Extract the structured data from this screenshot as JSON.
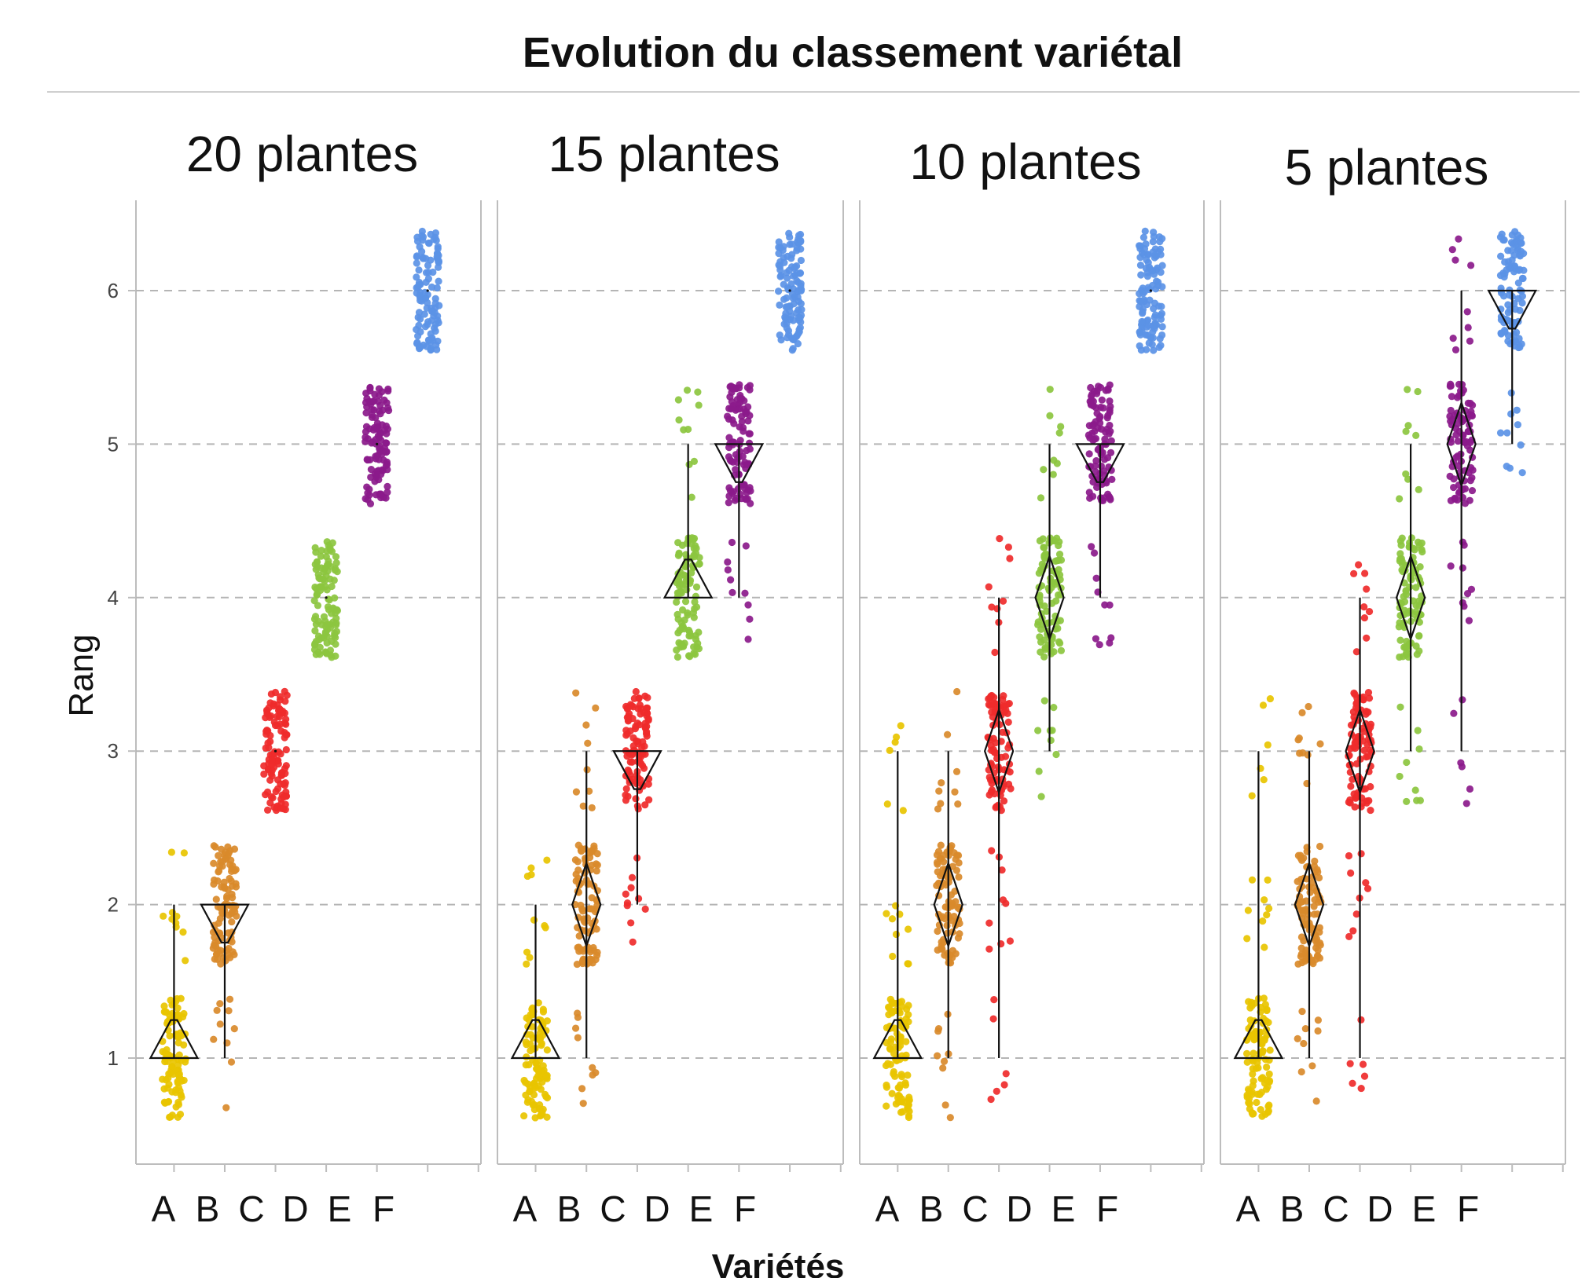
{
  "chart_data": {
    "type": "scatter",
    "title": "Evolution du classement variétal",
    "xlabel": "Variétés",
    "ylabel": "Rang",
    "ylim": [
      0.55,
      6.6
    ],
    "yticks": [
      1,
      2,
      3,
      4,
      5,
      6
    ],
    "grid": true,
    "colors": {
      "A": "#e8c400",
      "B": "#d98a2b",
      "C": "#ef2b2b",
      "D": "#8cc63f",
      "E": "#8b1a8b",
      "F": "#5b93e6"
    },
    "panels": [
      {
        "title": "20 plantes",
        "categories": [
          "A",
          "B",
          "C",
          "D",
          "E",
          "F"
        ],
        "series": [
          {
            "category": "A",
            "range": [
              1,
              2
            ],
            "min": 1,
            "max": 2,
            "mode": 1
          },
          {
            "category": "B",
            "range": [
              1,
              2
            ],
            "min": 1,
            "max": 2,
            "mode": 2
          },
          {
            "category": "C",
            "range": [
              3,
              3
            ],
            "min": 3,
            "max": 3,
            "mode": 3
          },
          {
            "category": "D",
            "range": [
              4,
              4
            ],
            "min": 4,
            "max": 4,
            "mode": 4
          },
          {
            "category": "E",
            "range": [
              5,
              5
            ],
            "min": 5,
            "max": 5,
            "mode": 5
          },
          {
            "category": "F",
            "range": [
              6,
              6
            ],
            "min": 6,
            "max": 6,
            "mode": 6
          }
        ]
      },
      {
        "title": "15 plantes",
        "categories": [
          "A",
          "B",
          "C",
          "D",
          "E",
          "F"
        ],
        "series": [
          {
            "category": "A",
            "range": [
              1,
              2
            ],
            "min": 1,
            "max": 2,
            "mode": 1
          },
          {
            "category": "B",
            "range": [
              1,
              3
            ],
            "min": 1,
            "max": 3,
            "mode": 2
          },
          {
            "category": "C",
            "range": [
              2,
              3
            ],
            "min": 2,
            "max": 3,
            "mode": 3
          },
          {
            "category": "D",
            "range": [
              4,
              5
            ],
            "min": 4,
            "max": 5,
            "mode": 4
          },
          {
            "category": "E",
            "range": [
              4,
              5
            ],
            "min": 4,
            "max": 5,
            "mode": 5
          },
          {
            "category": "F",
            "range": [
              6,
              6
            ],
            "min": 6,
            "max": 6,
            "mode": 6
          }
        ]
      },
      {
        "title": "10 plantes",
        "categories": [
          "A",
          "B",
          "C",
          "D",
          "E",
          "F"
        ],
        "series": [
          {
            "category": "A",
            "range": [
              1,
              3
            ],
            "min": 1,
            "max": 3,
            "mode": 1
          },
          {
            "category": "B",
            "range": [
              1,
              3
            ],
            "min": 1,
            "max": 3,
            "mode": 2
          },
          {
            "category": "C",
            "range": [
              1,
              4
            ],
            "min": 1,
            "max": 4,
            "mode": 3
          },
          {
            "category": "D",
            "range": [
              3,
              5
            ],
            "min": 3,
            "max": 5,
            "mode": 4
          },
          {
            "category": "E",
            "range": [
              4,
              5
            ],
            "min": 4,
            "max": 5,
            "mode": 5
          },
          {
            "category": "F",
            "range": [
              6,
              6
            ],
            "min": 6,
            "max": 6,
            "mode": 6
          }
        ]
      },
      {
        "title": "5 plantes",
        "categories": [
          "A",
          "B",
          "C",
          "D",
          "E",
          "F"
        ],
        "series": [
          {
            "category": "A",
            "range": [
              1,
              3
            ],
            "min": 1,
            "max": 3,
            "mode": 1
          },
          {
            "category": "B",
            "range": [
              1,
              3
            ],
            "min": 1,
            "max": 3,
            "mode": 2
          },
          {
            "category": "C",
            "range": [
              1,
              4
            ],
            "min": 1,
            "max": 4,
            "mode": 3
          },
          {
            "category": "D",
            "range": [
              3,
              5
            ],
            "min": 3,
            "max": 5,
            "mode": 4
          },
          {
            "category": "E",
            "range": [
              3,
              6
            ],
            "min": 3,
            "max": 6,
            "mode": 5
          },
          {
            "category": "F",
            "range": [
              5,
              6
            ],
            "min": 5,
            "max": 6,
            "mode": 6
          }
        ]
      }
    ]
  }
}
